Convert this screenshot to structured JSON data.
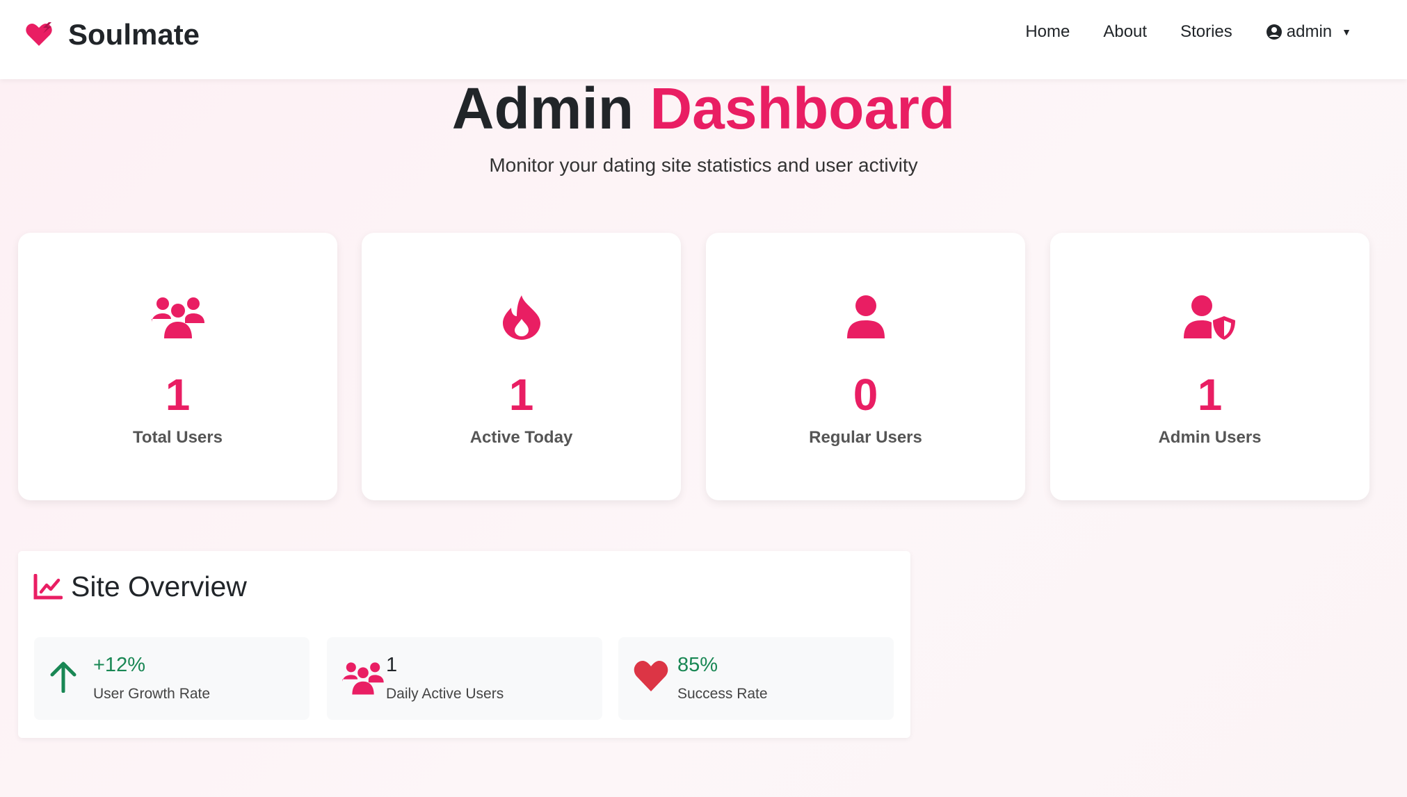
{
  "nav": {
    "brand": "Soulmate",
    "links": [
      "Home",
      "About",
      "Stories"
    ],
    "user": "admin"
  },
  "header": {
    "title_a": "Admin",
    "title_b": "Dashboard",
    "subtitle": "Monitor your dating site statistics and user activity"
  },
  "stats": [
    {
      "icon": "users-icon",
      "value": "1",
      "label": "Total Users"
    },
    {
      "icon": "fire-icon",
      "value": "1",
      "label": "Active Today"
    },
    {
      "icon": "user-icon",
      "value": "0",
      "label": "Regular Users"
    },
    {
      "icon": "user-shield-icon",
      "value": "1",
      "label": "Admin Users"
    }
  ],
  "overview": {
    "title": "Site Overview",
    "items": [
      {
        "icon": "arrow-up-icon",
        "value": "+12%",
        "label": "User Growth Rate"
      },
      {
        "icon": "users-icon",
        "value": "1",
        "label": "Daily Active Users"
      },
      {
        "icon": "heart-icon",
        "value": "85%",
        "label": "Success Rate"
      }
    ]
  },
  "colors": {
    "accent": "#e91e63",
    "green": "#198754",
    "heart": "#dc3545"
  }
}
